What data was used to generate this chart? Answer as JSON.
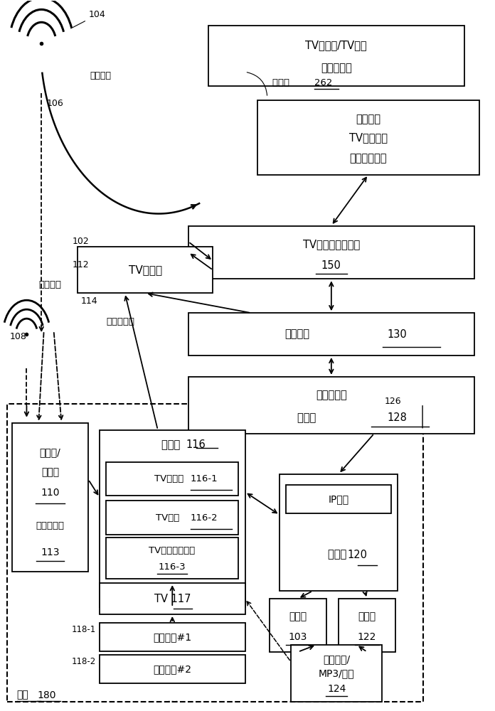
{
  "fig_w": 6.96,
  "fig_h": 10.0,
  "dpi": 100,
  "font": "SimHei",
  "fallback_font": "Arial Unicode MS",
  "lw": 1.3,
  "boxes": {
    "tv_data": [
      0.42,
      0.88,
      0.52,
      0.085
    ],
    "storage": [
      0.52,
      0.755,
      0.45,
      0.105
    ],
    "tv_server": [
      0.38,
      0.608,
      0.58,
      0.075
    ],
    "comm_net": [
      0.38,
      0.5,
      0.58,
      0.06
    ],
    "isp": [
      0.38,
      0.39,
      0.58,
      0.08
    ],
    "tv_bcast": [
      0.155,
      0.588,
      0.275,
      0.065
    ],
    "receiver": [
      0.022,
      0.195,
      0.155,
      0.21
    ],
    "stb_outer": [
      0.2,
      0.145,
      0.295,
      0.25
    ],
    "tv_sampler": [
      0.213,
      0.302,
      0.268,
      0.048
    ],
    "tv_app": [
      0.213,
      0.247,
      0.268,
      0.048
    ],
    "tv_hist": [
      0.213,
      0.185,
      0.268,
      0.058
    ],
    "tv117": [
      0.2,
      0.135,
      0.295,
      0.044
    ],
    "member1": [
      0.2,
      0.083,
      0.295,
      0.04
    ],
    "member2": [
      0.2,
      0.038,
      0.295,
      0.04
    ],
    "router": [
      0.565,
      0.168,
      0.24,
      0.165
    ],
    "ip_addr": [
      0.578,
      0.277,
      0.214,
      0.04
    ],
    "computer": [
      0.545,
      0.082,
      0.115,
      0.075
    ],
    "console": [
      0.685,
      0.082,
      0.115,
      0.075
    ],
    "smartphone": [
      0.588,
      0.012,
      0.185,
      0.08
    ]
  },
  "labels": {
    "tv_data": "TV广播者/TV计量\n数据提供者",
    "storage": "程序模块\nTV频道数据\n音频指纹数据",
    "tv_server": "TV内容识别服务器\n150",
    "comm_net": "通信网络  130",
    "isp": "因特网服务\n提供者 128",
    "tv_bcast": "TV广播者",
    "recv_top": "接收器/\n转换器\n110",
    "recv_bot": "传统机顶盒\n113",
    "stb_title": "机顶盒 116",
    "tv_sampler": "TV采样器  116-1",
    "tv_app": "TV应用   116-2",
    "tv_hist1": "TV收视历史记录",
    "tv_hist2": "116-3",
    "tv117": "TV 117",
    "member1": "家庭成员#1",
    "member2": "家庭成员#2",
    "ip_addr": "IP地址",
    "router": "路由器 120",
    "computer": "计算机\n103",
    "console": "控制台\n122",
    "smartphone": "智能电话/\nMP3/音乐\n124",
    "home": "家庭 180",
    "num_102": "102",
    "num_104": "104",
    "num_106": "106",
    "num_108": "108",
    "num_112": "112",
    "num_114": "114",
    "num_126": "126",
    "num_118_1": "118-1",
    "num_118_2": "118-2",
    "label_sat": "（卫星）",
    "label_cable": "（电缆）",
    "label_phone": "（电话线）",
    "label_stor": "存储器 262"
  }
}
